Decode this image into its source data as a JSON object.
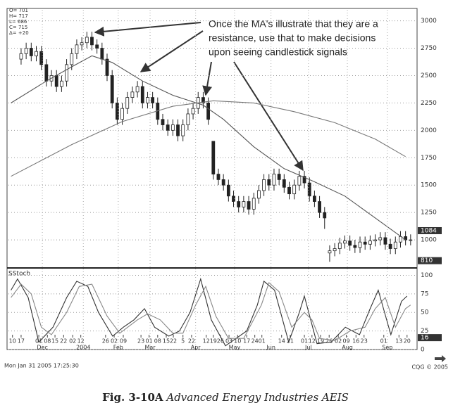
{
  "chart_data": [
    {
      "type": "candlestick",
      "info": [
        "O= 701",
        "H= 717",
        "L= 686",
        "C= 715",
        "Δ= +20"
      ],
      "annotation": [
        "Once the MA's illustrate that they are a",
        "resistance, use that to make decisions",
        "upon seeing candlestick signals"
      ],
      "open": [
        2650,
        2700,
        2750,
        2680,
        2720,
        2600,
        2450,
        2500,
        2400,
        2450,
        2600,
        2700,
        2780,
        2800,
        2850,
        2780,
        2750,
        2650,
        2500,
        2250,
        2100,
        2200,
        2300,
        2350,
        2400,
        2250,
        2300,
        2250,
        2100,
        2050,
        2000,
        2050,
        1950,
        2050,
        2150,
        2200,
        2300,
        2250,
        1900,
        1600,
        1550,
        1500,
        1400,
        1350,
        1300,
        1350,
        1280,
        1380,
        1450,
        1550,
        1500,
        1600,
        1550,
        1480,
        1420,
        1500,
        1580,
        1520,
        1400,
        1350,
        1250,
        880,
        900,
        920,
        970,
        990,
        950,
        930,
        980,
        960,
        990,
        1000,
        1020,
        960,
        920,
        980,
        1030,
        1000
      ],
      "high": [
        2750,
        2800,
        2800,
        2770,
        2770,
        2650,
        2550,
        2550,
        2500,
        2650,
        2750,
        2830,
        2850,
        2900,
        2900,
        2830,
        2800,
        2700,
        2550,
        2300,
        2250,
        2350,
        2400,
        2450,
        2450,
        2350,
        2350,
        2300,
        2150,
        2100,
        2100,
        2100,
        2100,
        2200,
        2250,
        2350,
        2350,
        2300,
        1900,
        1650,
        1600,
        1550,
        1450,
        1400,
        1400,
        1400,
        1430,
        1500,
        1600,
        1600,
        1650,
        1650,
        1600,
        1530,
        1550,
        1630,
        1630,
        1570,
        1450,
        1400,
        1300,
        950,
        970,
        1020,
        1040,
        1040,
        1000,
        1030,
        1030,
        1040,
        1050,
        1070,
        1070,
        1010,
        1030,
        1080,
        1080,
        1050
      ],
      "low": [
        2600,
        2650,
        2630,
        2630,
        2550,
        2400,
        2400,
        2350,
        2350,
        2400,
        2550,
        2650,
        2730,
        2750,
        2730,
        2700,
        2600,
        2450,
        2200,
        2050,
        2050,
        2150,
        2250,
        2300,
        2200,
        2200,
        2200,
        2050,
        2000,
        1950,
        1950,
        1900,
        1900,
        2000,
        2100,
        2150,
        2200,
        2050,
        1550,
        1500,
        1450,
        1350,
        1300,
        1250,
        1250,
        1230,
        1230,
        1330,
        1400,
        1450,
        1450,
        1500,
        1430,
        1370,
        1370,
        1450,
        1470,
        1350,
        1300,
        1200,
        1100,
        800,
        850,
        870,
        920,
        900,
        880,
        880,
        910,
        910,
        940,
        950,
        910,
        870,
        870,
        930,
        950,
        950
      ],
      "close": [
        2700,
        2750,
        2680,
        2720,
        2600,
        2450,
        2500,
        2400,
        2450,
        2600,
        2700,
        2780,
        2800,
        2850,
        2780,
        2750,
        2650,
        2500,
        2250,
        2100,
        2200,
        2300,
        2350,
        2400,
        2250,
        2300,
        2250,
        2100,
        2050,
        2000,
        2050,
        1950,
        2050,
        2150,
        2200,
        2300,
        2250,
        2100,
        1600,
        1550,
        1500,
        1400,
        1350,
        1300,
        1350,
        1280,
        1380,
        1450,
        1550,
        1500,
        1600,
        1550,
        1480,
        1420,
        1500,
        1580,
        1520,
        1400,
        1350,
        1250,
        1200,
        900,
        920,
        970,
        990,
        950,
        930,
        980,
        960,
        990,
        1000,
        1020,
        960,
        920,
        980,
        1030,
        1000,
        1000
      ],
      "up_color": "#ffffff",
      "color": "#222222",
      "lines": [
        {
          "x": [
            -2,
            5,
            10,
            14,
            18,
            24,
            30,
            36,
            40,
            46,
            52,
            58,
            64,
            70,
            76
          ],
          "values": [
            2250,
            2450,
            2580,
            2680,
            2620,
            2450,
            2320,
            2230,
            2100,
            1850,
            1650,
            1530,
            1400,
            1200,
            1000
          ],
          "color": "#555555"
        },
        {
          "x": [
            -2,
            10,
            20,
            30,
            38,
            46,
            54,
            62,
            70,
            76
          ],
          "values": [
            1580,
            1870,
            2080,
            2220,
            2270,
            2250,
            2170,
            2070,
            1920,
            1760
          ],
          "color": "#777777"
        }
      ],
      "xlim": [
        -2.5,
        78
      ],
      "ylim": [
        750,
        3100
      ],
      "yticks": [
        1000,
        1250,
        1500,
        1750,
        2000,
        2250,
        2500,
        2750,
        3000
      ],
      "markers": [
        1084,
        810
      ],
      "grid": true
    },
    {
      "type": "line",
      "label": "SStoch",
      "series": [
        {
          "x": [
            -2,
            -0.7,
            1.4,
            3.5,
            6.3,
            9,
            11,
            13.2,
            15.3,
            18.1,
            20.2,
            22.3,
            24.4,
            26.4,
            29.2,
            31.3,
            33.4,
            35.5,
            37.6,
            40.4,
            42.5,
            44.6,
            46.7,
            48,
            50.1,
            52.9,
            55,
            56,
            58.5,
            61.3,
            64.1,
            66.9,
            69,
            70.6,
            73.1,
            75.2,
            76.3
          ],
          "values": [
            80,
            95,
            70,
            10,
            30,
            70,
            92,
            85,
            50,
            18,
            30,
            40,
            55,
            30,
            18,
            25,
            50,
            95,
            40,
            5,
            15,
            25,
            60,
            92,
            80,
            10,
            50,
            72,
            8,
            10,
            30,
            20,
            55,
            80,
            20,
            65,
            72
          ],
          "color": "#333333"
        },
        {
          "x": [
            -2,
            0,
            2,
            4,
            6,
            9,
            11.5,
            14,
            17,
            19.5,
            23,
            25,
            27.5,
            30,
            32,
            34.5,
            36.5,
            38.5,
            41,
            44,
            47.5,
            49,
            51,
            53.5,
            56,
            57.5,
            59,
            62,
            65,
            68,
            70,
            72,
            74,
            76,
            77
          ],
          "values": [
            70,
            88,
            75,
            30,
            20,
            50,
            85,
            88,
            45,
            22,
            40,
            48,
            40,
            22,
            22,
            60,
            85,
            45,
            15,
            15,
            60,
            90,
            78,
            30,
            50,
            40,
            15,
            12,
            25,
            30,
            55,
            70,
            30,
            55,
            60
          ],
          "color": "#888888"
        }
      ],
      "xlim": [
        -2.5,
        78
      ],
      "ylim": [
        0,
        108
      ],
      "yticks": [
        0,
        25,
        50,
        75,
        100
      ],
      "markers": [
        16
      ],
      "grid": true,
      "xticks": [
        {
          "value": -1.7,
          "label": "10"
        },
        {
          "value": 0,
          "label": "17"
        },
        {
          "value": 3.5,
          "label": "01"
        },
        {
          "value": 5.2,
          "label": "08"
        },
        {
          "value": 6.7,
          "label": "15"
        },
        {
          "value": 8.4,
          "label": "22"
        },
        {
          "value": 10.2,
          "label": "02"
        },
        {
          "value": 11.8,
          "label": "12"
        },
        {
          "value": 16.7,
          "label": "26"
        },
        {
          "value": 18.4,
          "label": "02"
        },
        {
          "value": 20.2,
          "label": "09"
        },
        {
          "value": 23.7,
          "label": "23"
        },
        {
          "value": 25.3,
          "label": "01"
        },
        {
          "value": 27,
          "label": "08"
        },
        {
          "value": 28.7,
          "label": "15"
        },
        {
          "value": 30.1,
          "label": "22"
        },
        {
          "value": 32,
          "label": "5"
        },
        {
          "value": 33.7,
          "label": "22"
        },
        {
          "value": 36.6,
          "label": "12"
        },
        {
          "value": 38,
          "label": "19"
        },
        {
          "value": 39.4,
          "label": "26"
        },
        {
          "value": 41.1,
          "label": "03"
        },
        {
          "value": 42.8,
          "label": "10"
        },
        {
          "value": 44.6,
          "label": "17"
        },
        {
          "value": 46.2,
          "label": "24"
        },
        {
          "value": 47.6,
          "label": "01"
        },
        {
          "value": 51.5,
          "label": "14"
        },
        {
          "value": 53.2,
          "label": "21"
        },
        {
          "value": 56,
          "label": "01"
        },
        {
          "value": 57.5,
          "label": "12"
        },
        {
          "value": 59.2,
          "label": "19"
        },
        {
          "value": 60.9,
          "label": "26"
        },
        {
          "value": 62.7,
          "label": "02"
        },
        {
          "value": 64.3,
          "label": "09"
        },
        {
          "value": 66.2,
          "label": "16"
        },
        {
          "value": 67.8,
          "label": "23"
        },
        {
          "value": 71.7,
          "label": "01"
        },
        {
          "value": 74.7,
          "label": "13"
        },
        {
          "value": 76.3,
          "label": "20"
        }
      ],
      "month_labels": [
        {
          "value": 4.2,
          "label": "Dec"
        },
        {
          "value": 12.3,
          "label": "2004"
        },
        {
          "value": 19.2,
          "label": "Feb"
        },
        {
          "value": 25.5,
          "label": "Mar"
        },
        {
          "value": 34.5,
          "label": "Apr"
        },
        {
          "value": 42.2,
          "label": "May"
        },
        {
          "value": 49.4,
          "label": "Jun"
        },
        {
          "value": 56.8,
          "label": "Jul"
        },
        {
          "value": 64.5,
          "label": "Aug"
        },
        {
          "value": 72.4,
          "label": "Sep"
        }
      ]
    }
  ],
  "timestamp": "Mon Jan 31 2005 17:25:30",
  "copyright": "CQG © 2005",
  "caption": {
    "figure": "Fig. 3-10A",
    "text": "Advanced Energy Industries AEIS"
  }
}
